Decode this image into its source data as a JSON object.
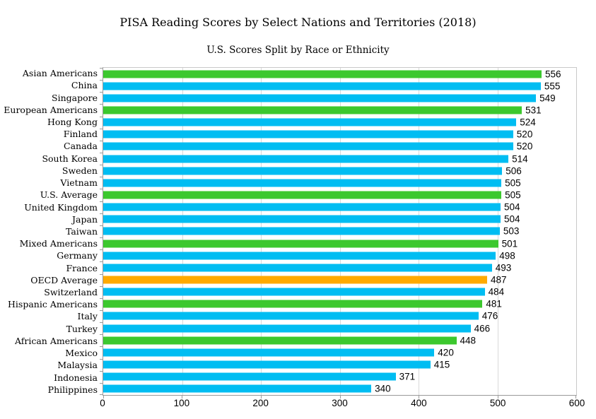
{
  "chart_data": {
    "type": "bar",
    "orientation": "horizontal",
    "title": "PISA Reading Scores by Select Nations and Territories (2018)",
    "subtitle": "U.S. Scores Split by Race or Ethnicity",
    "xlabel": "",
    "ylabel": "",
    "xlim": [
      0,
      600
    ],
    "x_ticks": [
      0,
      100,
      200,
      300,
      400,
      500,
      600
    ],
    "grid": "vertical",
    "legend": "none",
    "value_labels": "outside-end",
    "colors": {
      "us_group": "#3cc82e",
      "country": "#00bdf2",
      "oecd_average": "#ffaa00"
    },
    "bars": [
      {
        "label": "Asian Americans",
        "value": 556,
        "group": "us_group"
      },
      {
        "label": "China",
        "value": 555,
        "group": "country"
      },
      {
        "label": "Singapore",
        "value": 549,
        "group": "country"
      },
      {
        "label": "European Americans",
        "value": 531,
        "group": "us_group"
      },
      {
        "label": "Hong Kong",
        "value": 524,
        "group": "country"
      },
      {
        "label": "Finland",
        "value": 520,
        "group": "country"
      },
      {
        "label": "Canada",
        "value": 520,
        "group": "country"
      },
      {
        "label": "South Korea",
        "value": 514,
        "group": "country"
      },
      {
        "label": "Sweden",
        "value": 506,
        "group": "country"
      },
      {
        "label": "Vietnam",
        "value": 505,
        "group": "country"
      },
      {
        "label": "U.S. Average",
        "value": 505,
        "group": "us_group"
      },
      {
        "label": "United Kingdom",
        "value": 504,
        "group": "country"
      },
      {
        "label": "Japan",
        "value": 504,
        "group": "country"
      },
      {
        "label": "Taiwan",
        "value": 503,
        "group": "country"
      },
      {
        "label": "Mixed Americans",
        "value": 501,
        "group": "us_group"
      },
      {
        "label": "Germany",
        "value": 498,
        "group": "country"
      },
      {
        "label": "France",
        "value": 493,
        "group": "country"
      },
      {
        "label": "OECD Average",
        "value": 487,
        "group": "oecd_average"
      },
      {
        "label": "Switzerland",
        "value": 484,
        "group": "country"
      },
      {
        "label": "Hispanic Americans",
        "value": 481,
        "group": "us_group"
      },
      {
        "label": "Italy",
        "value": 476,
        "group": "country"
      },
      {
        "label": "Turkey",
        "value": 466,
        "group": "country"
      },
      {
        "label": "African Americans",
        "value": 448,
        "group": "us_group"
      },
      {
        "label": "Mexico",
        "value": 420,
        "group": "country"
      },
      {
        "label": "Malaysia",
        "value": 415,
        "group": "country"
      },
      {
        "label": "Indonesia",
        "value": 371,
        "group": "country"
      },
      {
        "label": "Philippines",
        "value": 340,
        "group": "country"
      }
    ]
  }
}
